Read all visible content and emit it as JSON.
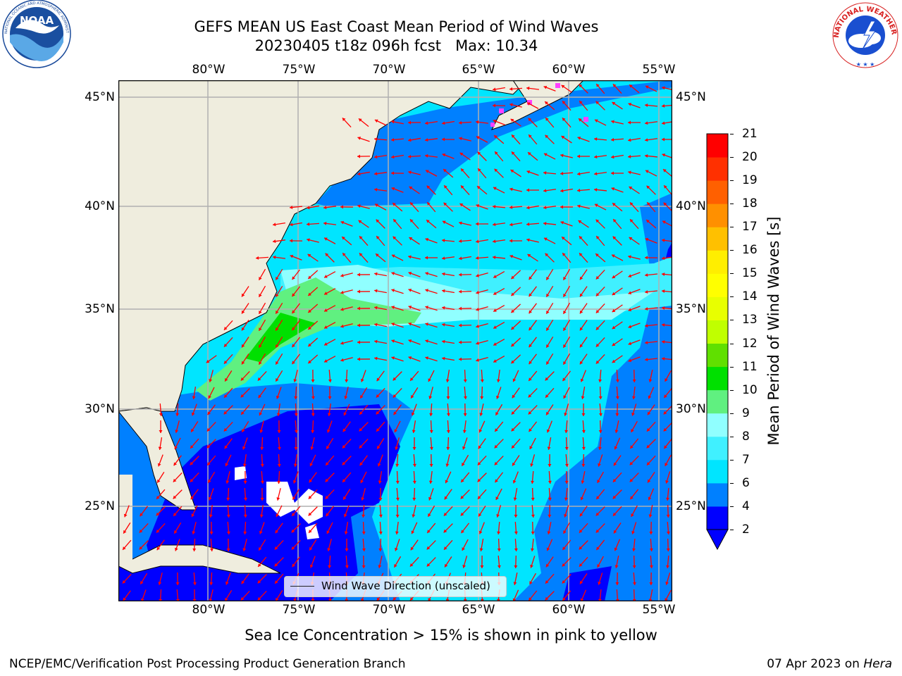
{
  "title": {
    "line1": "GEFS MEAN US East Coast Mean Period of Wind Waves",
    "line2": "20230405 t18z 096h fcst   Max: 10.34"
  },
  "logos": {
    "left": {
      "name": "NOAA",
      "text": "NOAA",
      "ring_text": "NATIONAL OCEANIC AND ATMOSPHERIC ADMINISTRATION · U.S. DEPARTMENT OF COMMERCE"
    },
    "right": {
      "name": "National Weather Service",
      "ring_text": "NATIONAL WEATHER SERVICE"
    }
  },
  "map": {
    "lon_ticks": [
      "80°W",
      "75°W",
      "70°W",
      "65°W",
      "60°W",
      "55°W"
    ],
    "lat_ticks": [
      "45°N",
      "40°N",
      "35°N",
      "30°N",
      "25°N"
    ],
    "legend_label": "Wind Wave Direction (unscaled)",
    "land_color": "#efedde",
    "arrow_color": "#ff0000",
    "grid_color": "#b0b0b0"
  },
  "colorbar": {
    "label": "Mean Period of Wind Waves [s]",
    "ticks": [
      "2",
      "4",
      "6",
      "7",
      "8",
      "9",
      "10",
      "11",
      "12",
      "13",
      "14",
      "15",
      "16",
      "17",
      "18",
      "19",
      "20",
      "21"
    ],
    "colors": [
      "#0000ff",
      "#0080ff",
      "#00e5ff",
      "#40f0ff",
      "#90ffff",
      "#60f080",
      "#00e000",
      "#60e000",
      "#c0ff00",
      "#e8ff00",
      "#ffff00",
      "#ffee00",
      "#ffc000",
      "#ff9000",
      "#ff6000",
      "#ff3000",
      "#ff0000"
    ],
    "under_color": "#0000ff"
  },
  "note": "Sea Ice Concentration > 15% is shown in pink to yellow",
  "footer": {
    "left": "NCEP/EMC/Verification Post Processing Product Generation Branch",
    "date": "07 Apr 2023 on ",
    "machine": "Hera"
  }
}
